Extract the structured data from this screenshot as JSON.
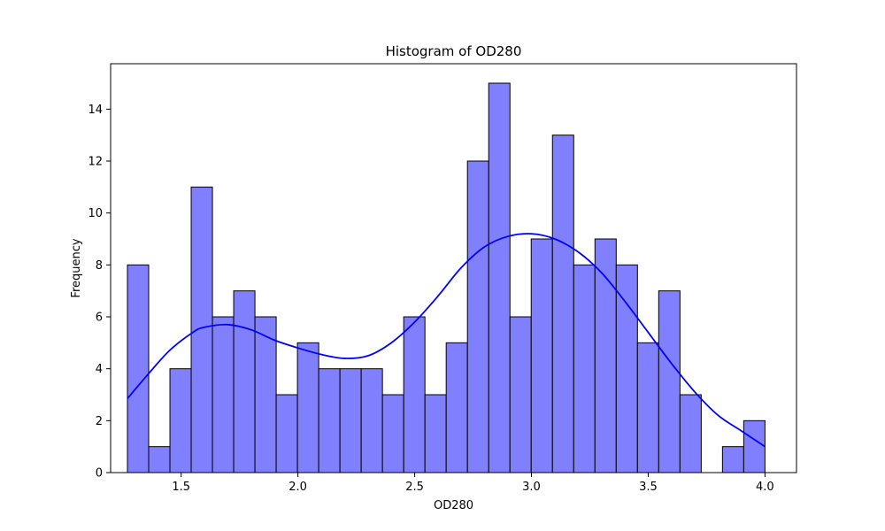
{
  "chart_data": {
    "type": "bar",
    "title": "Histogram of OD280",
    "xlabel": "OD280",
    "ylabel": "Frequency",
    "xlim": [
      1.198,
      4.135
    ],
    "ylim": [
      0,
      15.75
    ],
    "grid": false,
    "x_ticks": [
      "1.5",
      "2.0",
      "2.5",
      "3.0",
      "3.5",
      "4.0"
    ],
    "y_ticks": [
      "0",
      "2",
      "4",
      "6",
      "8",
      "10",
      "12",
      "14"
    ],
    "bin_range": [
      1.27,
      4.0
    ],
    "bins": 30,
    "values": [
      8,
      1,
      4,
      11,
      6,
      7,
      6,
      3,
      5,
      4,
      4,
      4,
      3,
      6,
      3,
      5,
      12,
      15,
      6,
      9,
      13,
      8,
      9,
      8,
      5,
      7,
      3,
      0,
      1,
      2
    ],
    "bar_color": "#8080ff",
    "bar_edge_color": "#000000",
    "kde": {
      "color": "#0000ff",
      "x": [
        1.27,
        1.35,
        1.45,
        1.55,
        1.6,
        1.7,
        1.8,
        1.9,
        2.0,
        2.1,
        2.2,
        2.3,
        2.4,
        2.5,
        2.6,
        2.7,
        2.8,
        2.9,
        3.0,
        3.1,
        3.2,
        3.3,
        3.4,
        3.5,
        3.6,
        3.7,
        3.8,
        3.9,
        4.0
      ],
      "y": [
        2.85,
        3.7,
        4.7,
        5.4,
        5.6,
        5.7,
        5.5,
        5.1,
        4.8,
        4.55,
        4.4,
        4.5,
        5.0,
        5.8,
        6.8,
        7.9,
        8.7,
        9.1,
        9.2,
        9.0,
        8.5,
        7.7,
        6.6,
        5.4,
        4.2,
        3.1,
        2.2,
        1.6,
        1.0
      ]
    }
  }
}
